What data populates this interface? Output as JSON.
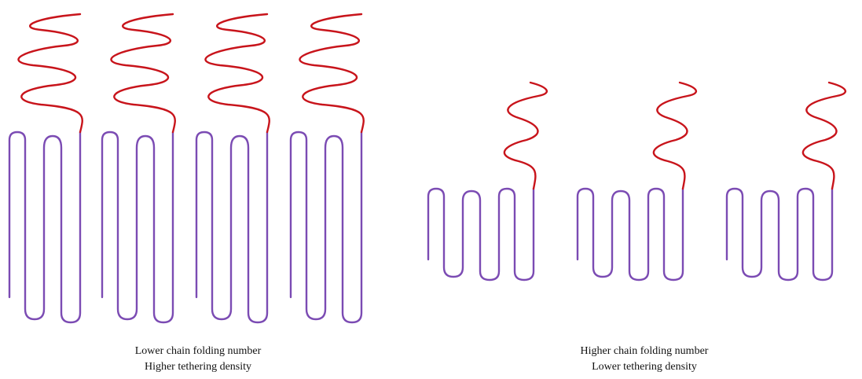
{
  "panels": [
    {
      "caption": [
        "Lower chain folding number",
        "Higher tethering density"
      ]
    },
    {
      "caption": [
        "Higher chain folding number",
        "Lower tethering density"
      ]
    }
  ]
}
